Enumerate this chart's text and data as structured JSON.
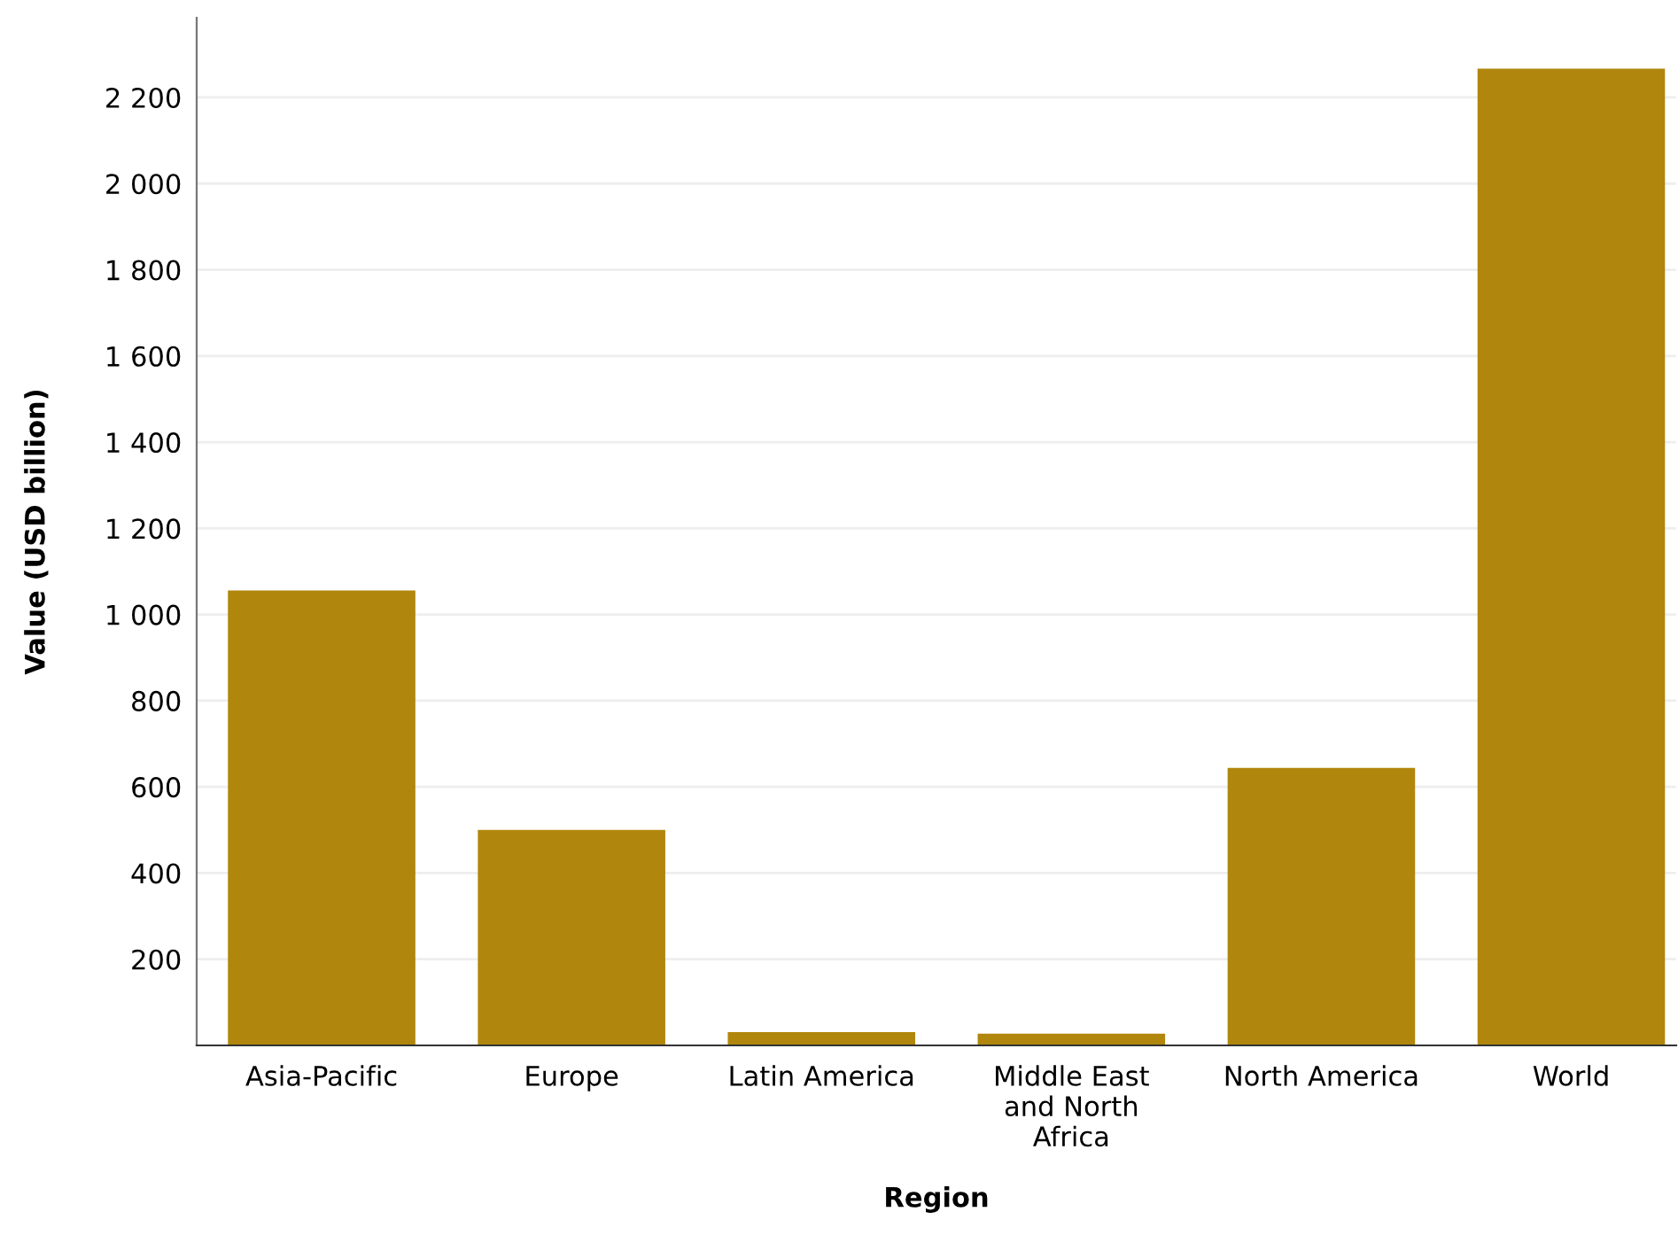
{
  "chart_data": {
    "type": "bar",
    "xlabel": "Region",
    "ylabel": "Value (USD billion)",
    "categories": [
      "Asia-Pacific",
      "Europe",
      "Latin America",
      "Middle East\nand North\nAfrica",
      "North America",
      "World"
    ],
    "values": [
      1056,
      500,
      31,
      27,
      644,
      2267
    ],
    "color": "#b0860c",
    "ylim": [
      0,
      2385
    ],
    "yticks": [
      {
        "value": 200,
        "label": "200"
      },
      {
        "value": 400,
        "label": "400"
      },
      {
        "value": 600,
        "label": "600"
      },
      {
        "value": 800,
        "label": "800"
      },
      {
        "value": 1000,
        "label": "1 000"
      },
      {
        "value": 1200,
        "label": "1 200"
      },
      {
        "value": 1400,
        "label": "1 400"
      },
      {
        "value": 1600,
        "label": "1 600"
      },
      {
        "value": 1800,
        "label": "1 800"
      },
      {
        "value": 2000,
        "label": "2 000"
      },
      {
        "value": 2200,
        "label": "2 200"
      }
    ],
    "grid": "y",
    "legend": false
  }
}
